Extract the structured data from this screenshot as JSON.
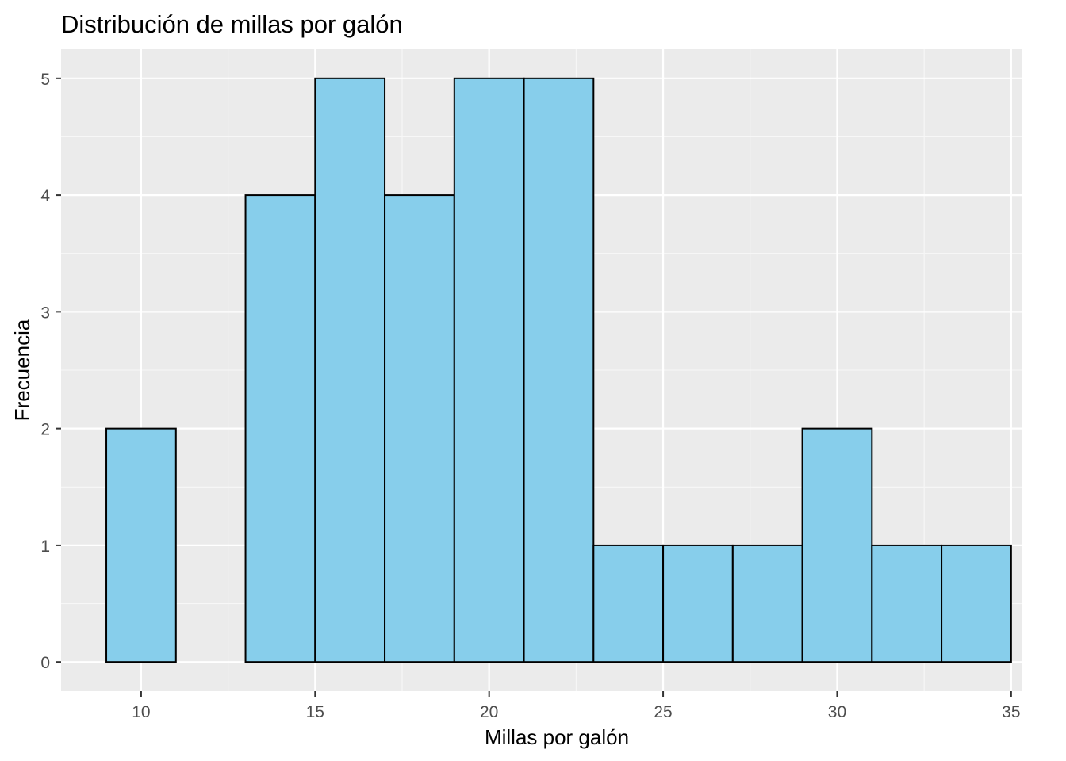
{
  "chart_data": {
    "type": "bar",
    "title": "Distribución de millas por galón",
    "xlabel": "Millas por galón",
    "ylabel": "Frecuencia",
    "bin_width": 2,
    "bins": [
      {
        "start": 9,
        "end": 11,
        "count": 2
      },
      {
        "start": 11,
        "end": 13,
        "count": 0
      },
      {
        "start": 13,
        "end": 15,
        "count": 4
      },
      {
        "start": 15,
        "end": 17,
        "count": 5
      },
      {
        "start": 17,
        "end": 19,
        "count": 4
      },
      {
        "start": 19,
        "end": 21,
        "count": 5
      },
      {
        "start": 21,
        "end": 23,
        "count": 5
      },
      {
        "start": 23,
        "end": 25,
        "count": 1
      },
      {
        "start": 25,
        "end": 27,
        "count": 1
      },
      {
        "start": 27,
        "end": 29,
        "count": 1
      },
      {
        "start": 29,
        "end": 31,
        "count": 2
      },
      {
        "start": 31,
        "end": 33,
        "count": 1
      },
      {
        "start": 33,
        "end": 35,
        "count": 1
      }
    ],
    "xlim": [
      7.7,
      35.3
    ],
    "ylim": [
      -0.25,
      5.25
    ],
    "x_ticks": [
      "10",
      "15",
      "20",
      "25",
      "30",
      "35"
    ],
    "y_ticks": [
      "0",
      "1",
      "2",
      "3",
      "4",
      "5"
    ],
    "grid": true,
    "legend": "none",
    "colors": {
      "bar_fill": "#87ceeb",
      "bar_stroke": "#000000",
      "panel_background": "#ebebeb",
      "grid_major": "#ffffff",
      "grid_minor": "#f7f7f7"
    }
  }
}
